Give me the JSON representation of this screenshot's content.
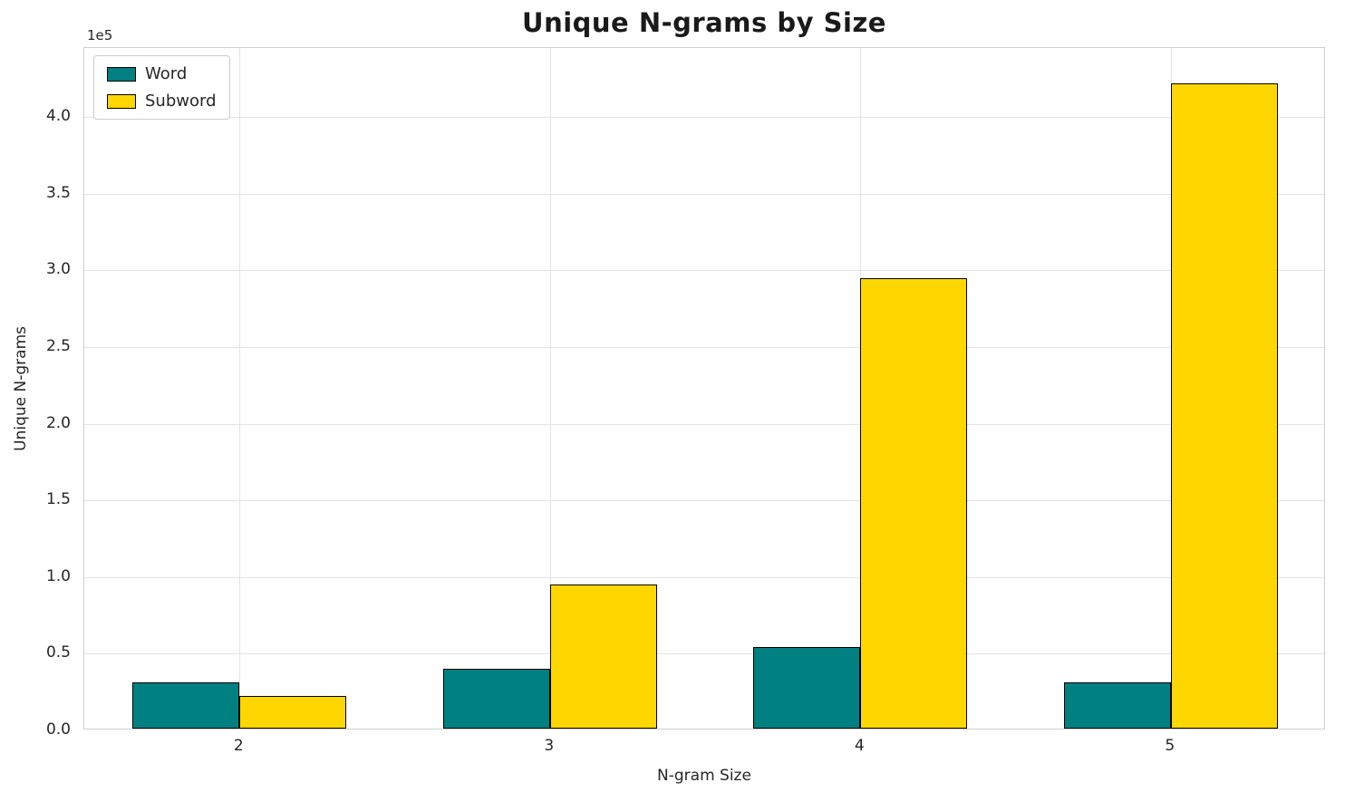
{
  "chart_data": {
    "type": "bar",
    "title": "Unique N-grams by Size",
    "xlabel": "N-gram Size",
    "ylabel": "Unique N-grams",
    "y_offset_label": "1e5",
    "categories": [
      "2",
      "3",
      "4",
      "5"
    ],
    "series": [
      {
        "name": "Word",
        "color": "#008080",
        "values": [
          30000,
          39000,
          53000,
          30000
        ]
      },
      {
        "name": "Subword",
        "color": "#FFD700",
        "values": [
          21500,
          94000,
          294000,
          421000
        ]
      }
    ],
    "ylim": [
      0,
      445000
    ],
    "yticks": [
      {
        "value": 0,
        "label": "0.0"
      },
      {
        "value": 50000,
        "label": "0.5"
      },
      {
        "value": 100000,
        "label": "1.0"
      },
      {
        "value": 150000,
        "label": "1.5"
      },
      {
        "value": 200000,
        "label": "2.0"
      },
      {
        "value": 250000,
        "label": "2.5"
      },
      {
        "value": 300000,
        "label": "3.0"
      },
      {
        "value": 350000,
        "label": "3.5"
      },
      {
        "value": 400000,
        "label": "4.0"
      }
    ],
    "grid": true,
    "legend_position": "upper left",
    "bar_edge_color": "#000000"
  }
}
